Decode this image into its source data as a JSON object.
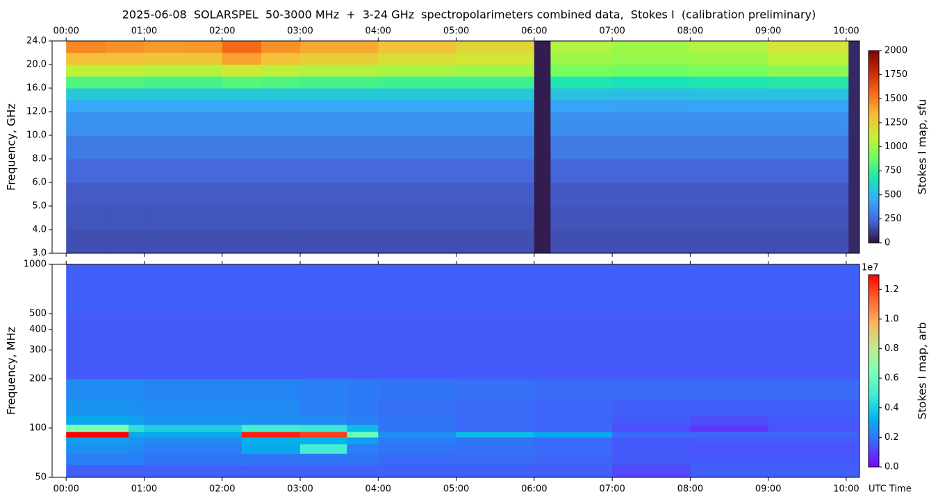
{
  "chart_data": [
    {
      "type": "heatmap",
      "title": "2025-06-08  SOLARSPEL  50-3000 MHz  +  3-24 GHz  spectropolarimeters combined data,  Stokes I  (calibration preliminary)",
      "ylabel": "Frequency, GHz",
      "colorbar_label": "Stokes I map, sfu",
      "yscale": "octave",
      "xtick_side": "top",
      "xlim": [
        -0.18,
        10.17
      ],
      "ylim": [
        3,
        24
      ],
      "xticks": [
        {
          "value": 0,
          "label": "00:00"
        },
        {
          "value": 1,
          "label": "01:00"
        },
        {
          "value": 2,
          "label": "02:00"
        },
        {
          "value": 3,
          "label": "03:00"
        },
        {
          "value": 4,
          "label": "04:00"
        },
        {
          "value": 5,
          "label": "05:00"
        },
        {
          "value": 6,
          "label": "06:00"
        },
        {
          "value": 7,
          "label": "07:00"
        },
        {
          "value": 8,
          "label": "08:00"
        },
        {
          "value": 9,
          "label": "09:00"
        },
        {
          "value": 10,
          "label": "10:00"
        }
      ],
      "yticks": [
        {
          "value": 3,
          "label": "3.0"
        },
        {
          "value": 4,
          "label": "4.0"
        },
        {
          "value": 5,
          "label": "5.0"
        },
        {
          "value": 6,
          "label": "6.0"
        },
        {
          "value": 8,
          "label": "8.0"
        },
        {
          "value": 10,
          "label": "10.0"
        },
        {
          "value": 12,
          "label": "12.0"
        },
        {
          "value": 16,
          "label": "16.0"
        },
        {
          "value": 20,
          "label": "20.0"
        },
        {
          "value": 24,
          "label": "24.0"
        }
      ],
      "clim": [
        0,
        2000
      ],
      "cticks": [
        0,
        250,
        500,
        750,
        1000,
        1250,
        1500,
        1750,
        2000
      ],
      "colormap": [
        "#30123b",
        "#4662d7",
        "#36aaf9",
        "#1ae4b6",
        "#72fe5e",
        "#c8ef34",
        "#faba39",
        "#f66b19",
        "#ca2a04",
        "#7a0403"
      ],
      "x_edges": [
        0,
        0.5,
        1,
        1.5,
        2,
        2.5,
        3,
        4,
        5,
        6,
        6.21,
        7,
        8,
        9,
        10.03,
        10.17
      ],
      "y_edges": [
        3,
        4,
        5,
        6,
        8,
        10,
        12,
        14,
        16,
        18,
        20,
        22,
        24
      ],
      "z": [
        [
          170,
          170,
          170,
          170,
          170,
          170,
          170,
          170,
          170,
          30,
          170,
          170,
          170,
          170,
          60
        ],
        [
          185,
          185,
          185,
          185,
          185,
          185,
          185,
          185,
          185,
          30,
          180,
          180,
          180,
          180,
          60
        ],
        [
          200,
          200,
          200,
          200,
          200,
          200,
          200,
          200,
          200,
          30,
          195,
          195,
          195,
          195,
          60
        ],
        [
          240,
          240,
          240,
          240,
          240,
          240,
          240,
          240,
          240,
          30,
          235,
          235,
          235,
          235,
          60
        ],
        [
          300,
          300,
          300,
          300,
          300,
          300,
          300,
          300,
          300,
          30,
          295,
          295,
          295,
          295,
          60
        ],
        [
          370,
          370,
          370,
          370,
          370,
          370,
          370,
          370,
          370,
          30,
          365,
          365,
          365,
          365,
          60
        ],
        [
          440,
          440,
          440,
          440,
          440,
          440,
          440,
          440,
          440,
          30,
          430,
          420,
          430,
          430,
          60
        ],
        [
          560,
          560,
          560,
          560,
          560,
          560,
          560,
          560,
          560,
          30,
          530,
          520,
          530,
          530,
          60
        ],
        [
          800,
          800,
          780,
          780,
          820,
          800,
          780,
          760,
          760,
          30,
          680,
          660,
          680,
          700,
          60
        ],
        [
          1080,
          1080,
          1060,
          1060,
          1120,
          1080,
          1050,
          1020,
          1000,
          30,
          900,
          880,
          900,
          950,
          60
        ],
        [
          1300,
          1300,
          1280,
          1280,
          1400,
          1300,
          1250,
          1180,
          1150,
          30,
          1000,
          980,
          1000,
          1080,
          60
        ],
        [
          1480,
          1450,
          1420,
          1430,
          1560,
          1450,
          1380,
          1300,
          1220,
          30,
          1050,
          1000,
          1050,
          1150,
          60
        ]
      ]
    },
    {
      "type": "heatmap",
      "ylabel": "Frequency, MHz",
      "xlabel": "UTC Time",
      "colorbar_label": "Stokes I map, arb",
      "colorbar_offset": "1e7",
      "yscale": "log",
      "xtick_side": "bottom",
      "xlim": [
        -0.18,
        10.17
      ],
      "ylim": [
        50,
        1000
      ],
      "xticks": [
        {
          "value": 0,
          "label": "00:00"
        },
        {
          "value": 1,
          "label": "01:00"
        },
        {
          "value": 2,
          "label": "02:00"
        },
        {
          "value": 3,
          "label": "03:00"
        },
        {
          "value": 4,
          "label": "04:00"
        },
        {
          "value": 5,
          "label": "05:00"
        },
        {
          "value": 6,
          "label": "06:00"
        },
        {
          "value": 7,
          "label": "07:00"
        },
        {
          "value": 8,
          "label": "08:00"
        },
        {
          "value": 9,
          "label": "09:00"
        },
        {
          "value": 10,
          "label": "10:00"
        }
      ],
      "yticks": [
        50,
        100,
        200,
        300,
        400,
        500,
        1000
      ],
      "clim": [
        0,
        13000000
      ],
      "cticks": [
        {
          "value": 0,
          "label": "0.0"
        },
        {
          "value": 2000000,
          "label": "0.2"
        },
        {
          "value": 4000000,
          "label": "0.4"
        },
        {
          "value": 6000000,
          "label": "0.6"
        },
        {
          "value": 8000000,
          "label": "0.8"
        },
        {
          "value": 10000000,
          "label": "1.0"
        },
        {
          "value": 12000000,
          "label": "1.2"
        }
      ],
      "colormap": [
        "#8000ff",
        "#4062fa",
        "#00b5eb",
        "#40ecd4",
        "#80ffb4",
        "#c0eb8d",
        "#ffb360",
        "#ff6230",
        "#ff0000"
      ],
      "x_edges": [
        0,
        0.8,
        1,
        2.25,
        3,
        3.6,
        4,
        5,
        6,
        7,
        8,
        9,
        10.17
      ],
      "y_edges": [
        50,
        60,
        70,
        80,
        88,
        95,
        105,
        120,
        150,
        200,
        300,
        500,
        1000
      ],
      "z": [
        [
          1600000,
          1600000,
          1600000,
          1600000,
          1600000,
          1600000,
          1600000,
          1600000,
          1600000,
          1200000,
          1600000,
          1600000
        ],
        [
          2200000,
          2200000,
          2000000,
          2000000,
          2000000,
          2000000,
          1800000,
          1800000,
          1700000,
          1500000,
          1500000,
          1500000
        ],
        [
          2500000,
          2400000,
          2200000,
          3000000,
          5000000,
          2200000,
          2000000,
          1900000,
          1800000,
          1500000,
          1400000,
          1400000
        ],
        [
          2800000,
          2600000,
          2400000,
          3200000,
          3200000,
          2800000,
          2200000,
          2000000,
          1800000,
          1500000,
          1500000,
          1500000
        ],
        [
          13000000,
          3000000,
          3000000,
          12500000,
          12000000,
          6000000,
          2500000,
          3500000,
          3000000,
          1800000,
          1700000,
          1700000
        ],
        [
          6500000,
          4500000,
          4000000,
          5000000,
          4800000,
          3500000,
          2000000,
          1800000,
          1700000,
          1300000,
          900000,
          1400000
        ],
        [
          3000000,
          2800000,
          2600000,
          2500000,
          2400000,
          2200000,
          2000000,
          1800000,
          1700000,
          1500000,
          1300000,
          1500000
        ],
        [
          2600000,
          2500000,
          2400000,
          2400000,
          2200000,
          2100000,
          1900000,
          1800000,
          1700000,
          1600000,
          1600000,
          1600000
        ],
        [
          2400000,
          2400000,
          2300000,
          2300000,
          2200000,
          2100000,
          2000000,
          1900000,
          1800000,
          1800000,
          1800000,
          1800000
        ],
        [
          1500000,
          1500000,
          1500000,
          1500000,
          1500000,
          1500000,
          1500000,
          1500000,
          1500000,
          1500000,
          1500000,
          1500000
        ],
        [
          1500000,
          1500000,
          1500000,
          1500000,
          1500000,
          1500000,
          1500000,
          1500000,
          1500000,
          1500000,
          1500000,
          1500000
        ],
        [
          1600000,
          1600000,
          1600000,
          1600000,
          1600000,
          1600000,
          1600000,
          1600000,
          1600000,
          1600000,
          1600000,
          1600000
        ]
      ]
    }
  ]
}
